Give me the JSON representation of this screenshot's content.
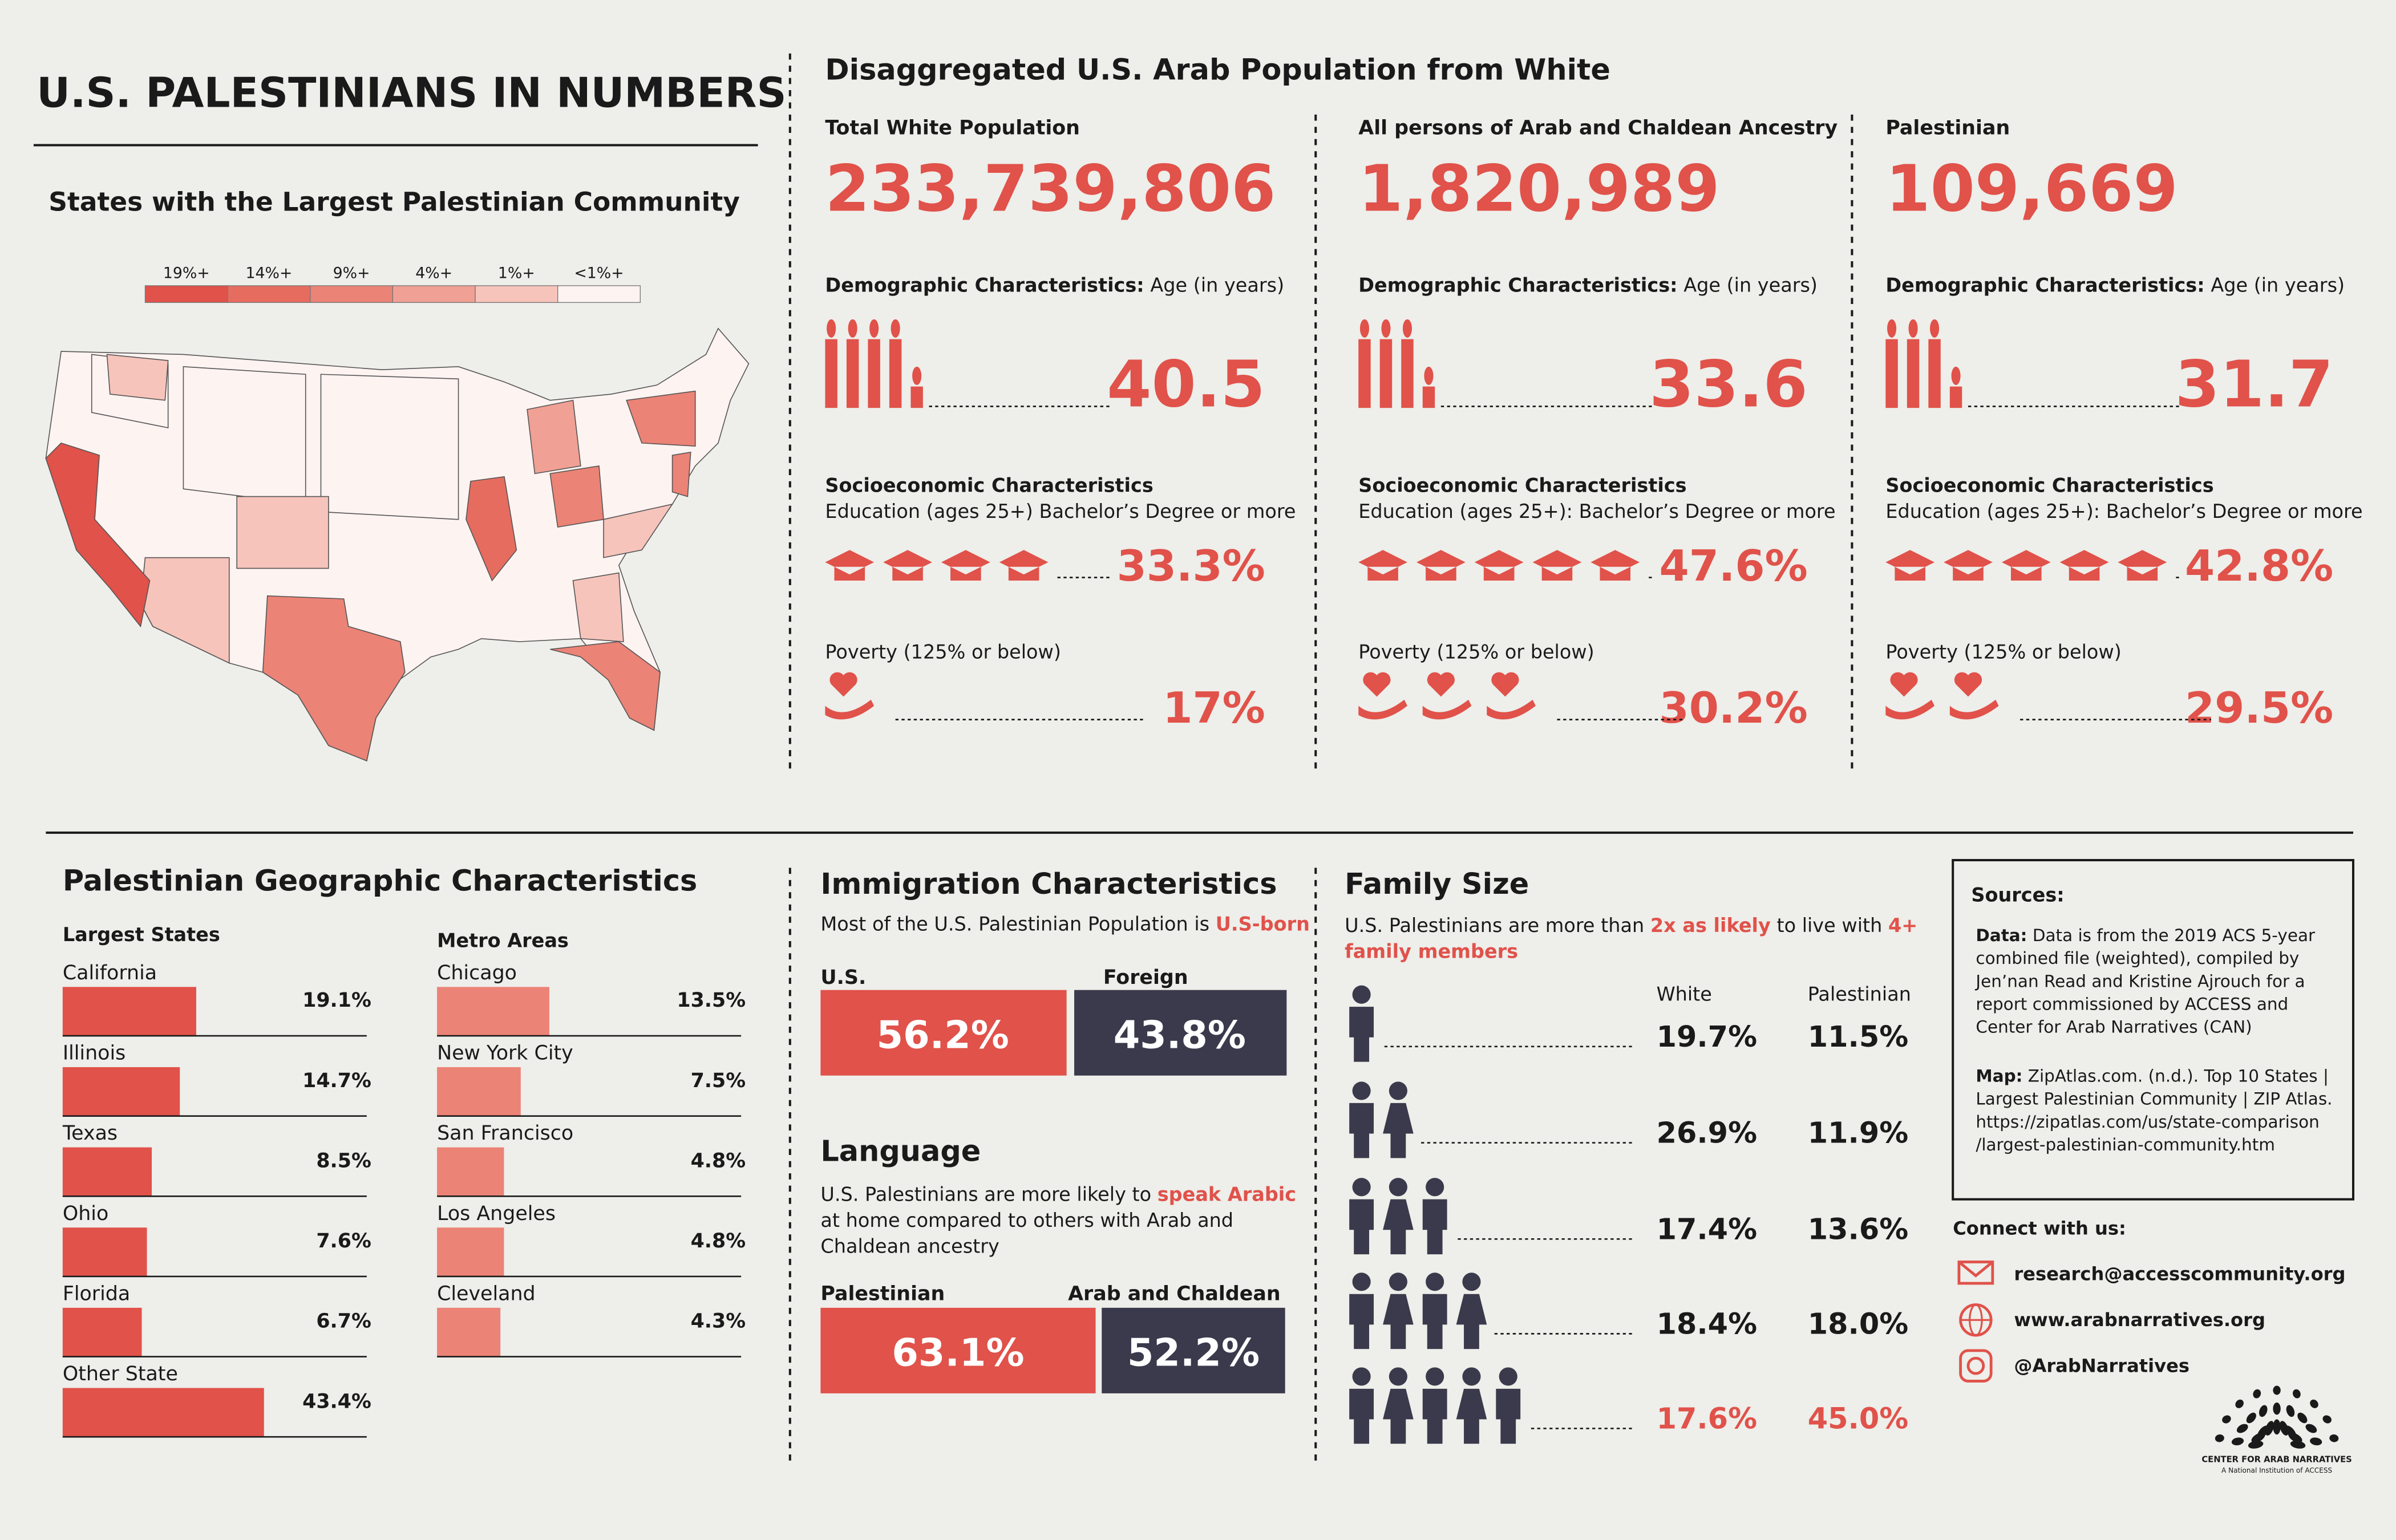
{
  "header": {
    "title": "U.S. PALESTINIANS IN NUMBERS"
  },
  "map": {
    "title": "States with the Largest Palestinian Community",
    "legend": [
      {
        "label": "19%+",
        "color": "#e0524a"
      },
      {
        "label": "14%+",
        "color": "#e76c60"
      },
      {
        "label": "9%+",
        "color": "#eb8376"
      },
      {
        "label": "4%+",
        "color": "#f0a094"
      },
      {
        "label": "1%+",
        "color": "#f6c4bb"
      },
      {
        "label": "<1%+",
        "color": "#fdf3f1"
      }
    ]
  },
  "disaggregated": {
    "title": "Disaggregated U.S. Arab Population from White",
    "demo_bold": "Demographic Characteristics:",
    "demo_label": "Age (in years)",
    "socio_title": "Socioeconomic Characteristics",
    "poverty_label": "Poverty (125% or below)",
    "columns": [
      {
        "group": "Total White Population",
        "total": "233,739,806",
        "age": "40.5",
        "edu_label": "Education (ages 25+) Bachelor’s Degree or more",
        "edu": "33.3%",
        "poverty": "17%"
      },
      {
        "group": "All persons of Arab and Chaldean Ancestry",
        "total": "1,820,989",
        "age": "33.6",
        "edu_label": "Education (ages 25+): Bachelor’s Degree or more",
        "edu": "47.6%",
        "poverty": "30.2%"
      },
      {
        "group": "Palestinian",
        "total": "109,669",
        "age": "31.7",
        "edu_label": "Education (ages 25+): Bachelor’s Degree or more",
        "edu": "42.8%",
        "poverty": "29.5%"
      }
    ]
  },
  "geographic": {
    "title": "Palestinian Geographic Characteristics",
    "states": {
      "heading": "Largest States",
      "items": [
        {
          "name": "California",
          "value": 19.1,
          "label": "19.1%"
        },
        {
          "name": "Illinois",
          "value": 14.7,
          "label": "14.7%"
        },
        {
          "name": "Texas",
          "value": 8.5,
          "label": "8.5%"
        },
        {
          "name": "Ohio",
          "value": 7.6,
          "label": "7.6%"
        },
        {
          "name": "Florida",
          "value": 6.7,
          "label": "6.7%"
        },
        {
          "name": "Other State",
          "value": 43.4,
          "label": "43.4%"
        }
      ]
    },
    "metros": {
      "heading": "Metro Areas",
      "items": [
        {
          "name": "Chicago",
          "value": 13.5,
          "label": "13.5%"
        },
        {
          "name": "New York City",
          "value": 7.5,
          "label": "7.5%"
        },
        {
          "name": "San Francisco",
          "value": 4.8,
          "label": "4.8%"
        },
        {
          "name": "Los Angeles",
          "value": 4.8,
          "label": "4.8%"
        },
        {
          "name": "Cleveland",
          "value": 4.3,
          "label": "4.3%"
        }
      ]
    }
  },
  "immigration": {
    "title": "Immigration Characteristics",
    "text": "Most of the U.S. Palestinian Population is ",
    "highlight": "U.S-born",
    "us_label": "U.S.",
    "us_value": "56.2%",
    "foreign_label": "Foreign",
    "foreign_value": "43.8%"
  },
  "language": {
    "title": "Language",
    "text_1": "U.S. Palestinians are more likely to ",
    "highlight": "speak Arabic",
    "text_2": "at home compared to others with Arab and",
    "text_3": "Chaldean ancestry",
    "pal_label": "Palestinian",
    "pal_value": "63.1%",
    "arab_label": "Arab and Chaldean",
    "arab_value": "52.2%"
  },
  "family": {
    "title": "Family Size",
    "text_1": "U.S. Palestinians are more than ",
    "highlight_1": "2x as likely",
    "text_2": " to live with ",
    "highlight_2": "4+",
    "highlight_3": "family members",
    "col_white": "White",
    "col_pal": "Palestinian",
    "rows": [
      [
        "19.7%",
        "11.5%"
      ],
      [
        "26.9%",
        "11.9%"
      ],
      [
        "17.4%",
        "13.6%"
      ],
      [
        "18.4%",
        "18.0%"
      ],
      [
        "17.6%",
        "45.0%"
      ]
    ]
  },
  "sources": {
    "title": "Sources:",
    "data_bold": "Data:",
    "data_lines": [
      " Data is from the 2019 ACS 5-year",
      "combined file (weighted), compiled by",
      "Jen’nan Read and Kristine Ajrouch for a",
      "report commissioned by ACCESS and",
      "Center for Arab Narratives (CAN)"
    ],
    "map_bold": "Map:",
    "map_lines": [
      " ZipAtlas.com. (n.d.). Top 10 States |",
      "Largest Palestinian Community | ZIP Atlas.",
      "https://zipatlas.com/us/state-comparison",
      "/largest-palestinian-community.htm"
    ]
  },
  "connect": {
    "title": "Connect with us:",
    "email": "research@accesscommunity.org",
    "web": "www.arabnarratives.org",
    "social": "@ArabNarratives"
  },
  "logo": {
    "name": "CENTER FOR ARAB NARRATIVES",
    "tagline": "A National Institution of ACCESS"
  }
}
